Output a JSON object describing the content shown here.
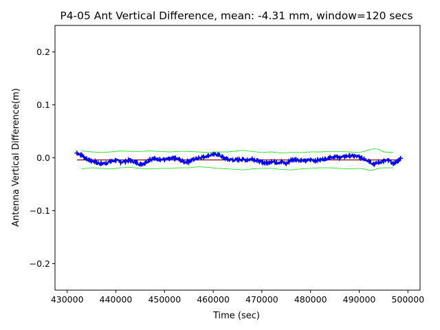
{
  "chart_data": {
    "type": "line",
    "title": "P4-05 Ant Vertical Difference, mean: -4.31 mm, window=120 secs",
    "xlabel": "Time (sec)",
    "ylabel": "Antenna Vertical Difference(m)",
    "xlim": [
      427500,
      502500
    ],
    "ylim": [
      -0.25,
      0.25
    ],
    "xticks": [
      430000,
      440000,
      450000,
      460000,
      470000,
      480000,
      490000,
      500000
    ],
    "xtick_labels": [
      "430000",
      "440000",
      "450000",
      "460000",
      "470000",
      "480000",
      "490000",
      "500000"
    ],
    "yticks": [
      -0.2,
      -0.1,
      0.0,
      0.1,
      0.2
    ],
    "ytick_labels": [
      "−0.2",
      "−0.1",
      "0.0",
      "0.1",
      "0.2"
    ],
    "grid": false,
    "series": [
      {
        "role": "measurements",
        "marker": "+",
        "color": "#0000ff",
        "x": [
          432000,
          433000,
          434000,
          435000,
          436000,
          437000,
          438000,
          439000,
          440000,
          441000,
          442000,
          443000,
          444000,
          445000,
          446000,
          447000,
          448000,
          449000,
          450000,
          451000,
          452000,
          453000,
          454000,
          455000,
          456000,
          457000,
          458000,
          459000,
          460000,
          461000,
          462000,
          463000,
          464000,
          465000,
          466000,
          467000,
          468000,
          469000,
          470000,
          471000,
          472000,
          473000,
          474000,
          475000,
          476000,
          477000,
          478000,
          479000,
          480000,
          481000,
          482000,
          483000,
          484000,
          485000,
          486000,
          487000,
          488000,
          489000,
          490000,
          491000,
          492000,
          493000,
          494000,
          495000,
          496000,
          497000,
          498000,
          498500
        ],
        "y": [
          0.009,
          0.005,
          -0.002,
          -0.006,
          -0.009,
          -0.011,
          -0.01,
          -0.007,
          -0.005,
          -0.008,
          -0.006,
          -0.005,
          -0.008,
          -0.012,
          -0.01,
          -0.003,
          -0.001,
          -0.003,
          -0.004,
          -0.002,
          -0.001,
          -0.003,
          -0.008,
          -0.007,
          -0.003,
          0.0,
          0.002,
          0.004,
          0.007,
          0.006,
          0.001,
          -0.003,
          -0.004,
          -0.004,
          -0.003,
          -0.004,
          -0.002,
          -0.005,
          -0.008,
          -0.01,
          -0.007,
          -0.009,
          -0.008,
          -0.011,
          -0.004,
          -0.003,
          -0.005,
          -0.006,
          -0.004,
          -0.005,
          -0.004,
          -0.002,
          0.001,
          0.002,
          0.0,
          0.002,
          0.004,
          0.003,
          0.002,
          -0.002,
          -0.006,
          -0.012,
          -0.009,
          -0.006,
          -0.005,
          -0.011,
          -0.006,
          -0.001
        ]
      },
      {
        "role": "upper-envelope",
        "color": "#00dd00",
        "x": [
          433000,
          435000,
          437000,
          439000,
          441000,
          443000,
          445000,
          447000,
          449000,
          451000,
          453000,
          455000,
          457000,
          459000,
          461000,
          463000,
          465000,
          466000,
          468000,
          470000,
          472000,
          474000,
          476000,
          478000,
          480000,
          482000,
          484000,
          486000,
          488000,
          490000,
          491000,
          492000,
          493000,
          494000,
          495000,
          497000
        ],
        "y": [
          0.013,
          0.011,
          0.01,
          0.011,
          0.013,
          0.012,
          0.012,
          0.013,
          0.012,
          0.011,
          0.012,
          0.012,
          0.011,
          0.01,
          0.011,
          0.011,
          0.013,
          0.014,
          0.012,
          0.01,
          0.011,
          0.009,
          0.01,
          0.01,
          0.011,
          0.011,
          0.012,
          0.012,
          0.011,
          0.01,
          0.012,
          0.015,
          0.017,
          0.016,
          0.011,
          0.01
        ]
      },
      {
        "role": "lower-envelope",
        "color": "#00dd00",
        "x": [
          433000,
          435000,
          437000,
          439000,
          441000,
          443000,
          445000,
          447000,
          449000,
          451000,
          453000,
          455000,
          457000,
          459000,
          461000,
          463000,
          465000,
          466000,
          468000,
          470000,
          472000,
          474000,
          476000,
          478000,
          480000,
          482000,
          484000,
          486000,
          488000,
          490000,
          491000,
          492000,
          493000,
          494000,
          495000,
          497000
        ],
        "y": [
          -0.021,
          -0.019,
          -0.02,
          -0.021,
          -0.019,
          -0.018,
          -0.02,
          -0.021,
          -0.02,
          -0.02,
          -0.019,
          -0.019,
          -0.017,
          -0.018,
          -0.02,
          -0.021,
          -0.022,
          -0.023,
          -0.021,
          -0.02,
          -0.02,
          -0.022,
          -0.023,
          -0.021,
          -0.02,
          -0.019,
          -0.019,
          -0.02,
          -0.021,
          -0.02,
          -0.021,
          -0.024,
          -0.023,
          -0.02,
          -0.019,
          -0.019
        ]
      },
      {
        "role": "trend",
        "color": "#8b0000",
        "x": [
          432000,
          498000
        ],
        "y": [
          -0.004,
          -0.004
        ]
      }
    ]
  }
}
